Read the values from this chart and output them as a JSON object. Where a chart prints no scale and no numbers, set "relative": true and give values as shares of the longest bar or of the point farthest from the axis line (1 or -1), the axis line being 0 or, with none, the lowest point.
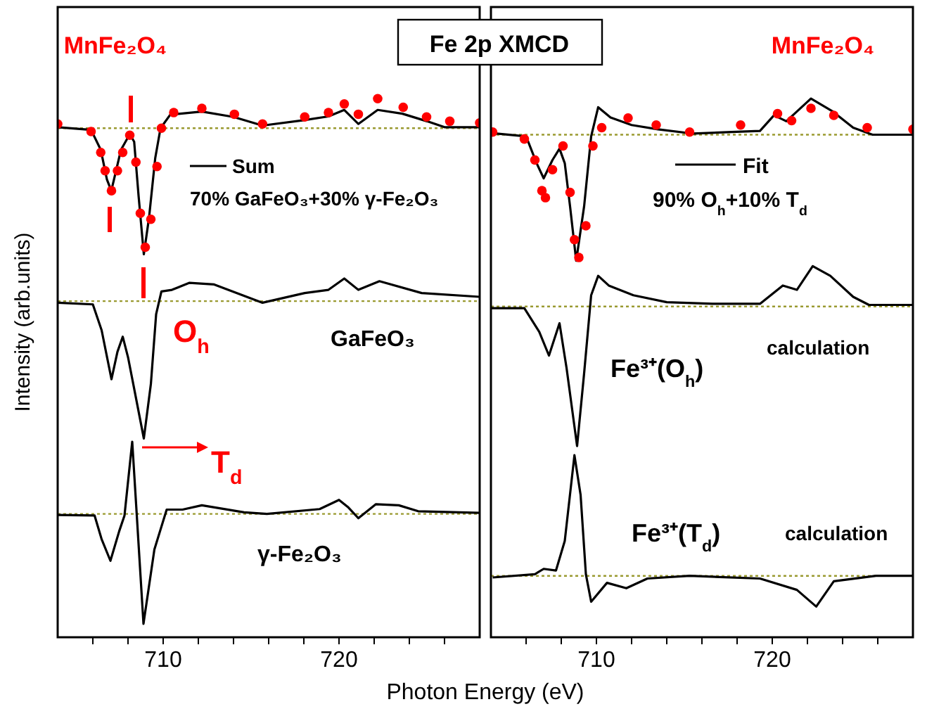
{
  "chart_data": [
    {
      "type": "line",
      "title": "Fe 2p XMCD",
      "xlabel": "Photon Energy (eV)",
      "ylabel": "Intensity (arb.units)",
      "relative": true,
      "xlim": [
        704,
        728
      ],
      "xticks": [
        {
          "value": 706,
          "label": null
        },
        {
          "value": 708,
          "label": null
        },
        {
          "value": 710,
          "label": "710"
        },
        {
          "value": 712,
          "label": null
        },
        {
          "value": 714,
          "label": null
        },
        {
          "value": 716,
          "label": null
        },
        {
          "value": 718,
          "label": null
        },
        {
          "value": 720,
          "label": "720"
        },
        {
          "value": 722,
          "label": null
        },
        {
          "value": 724,
          "label": null
        },
        {
          "value": 726,
          "label": null
        }
      ],
      "ref_lines": [
        {
          "axis": "y",
          "value": 0.945,
          "color": "#9a9a30",
          "line_style": "dotted"
        },
        {
          "axis": "y",
          "value": 0.624,
          "color": "#9a9a30",
          "line_style": "dotted"
        },
        {
          "axis": "y",
          "value": 0.229,
          "color": "#9a9a30",
          "line_style": "dotted"
        }
      ],
      "annotations": [
        "70% GaFeO₃+30% γ-Fe₂O₃",
        "O$_{h}$",
        "T$_{d}$"
      ],
      "series": [
        {
          "name": "MnFe₂O₄",
          "type": "scatter",
          "marker": "circle",
          "color": "#ff0000",
          "x": [
            704.0,
            705.9,
            706.45,
            706.7,
            707.06,
            707.4,
            707.7,
            708.1,
            708.45,
            708.7,
            708.98,
            709.3,
            709.65,
            709.9,
            710.6,
            712.2,
            714.05,
            715.65,
            718.05,
            719.4,
            720.3,
            721.1,
            722.2,
            723.65,
            724.98,
            726.3,
            728
          ],
          "values": [
            0.953,
            0.939,
            0.9,
            0.866,
            0.829,
            0.866,
            0.9,
            0.932,
            0.882,
            0.787,
            0.724,
            0.776,
            0.874,
            0.945,
            0.974,
            0.982,
            0.971,
            0.953,
            0.966,
            0.974,
            0.99,
            0.971,
            1.0,
            0.984,
            0.966,
            0.958,
            0.955
          ]
        },
        {
          "name": "Sum",
          "color": "#000000",
          "x": [
            704.0,
            705.9,
            706.45,
            706.8,
            707.05,
            707.35,
            707.6,
            708.1,
            708.35,
            708.6,
            708.9,
            709.2,
            709.55,
            709.85,
            710.4,
            712.2,
            714.0,
            715.65,
            718.0,
            719.4,
            720.3,
            721.1,
            722.2,
            723.6,
            725.0,
            726.0,
            728
          ],
          "values": [
            0.947,
            0.942,
            0.905,
            0.85,
            0.829,
            0.87,
            0.905,
            0.934,
            0.92,
            0.82,
            0.711,
            0.78,
            0.89,
            0.945,
            0.97,
            0.976,
            0.966,
            0.95,
            0.96,
            0.967,
            0.979,
            0.953,
            0.979,
            0.972,
            0.958,
            0.947,
            0.947
          ]
        },
        {
          "name": "GaFeO₃",
          "color": "#000000",
          "x": [
            704,
            706.0,
            706.5,
            707.06,
            707.4,
            707.7,
            708.0,
            708.3,
            708.9,
            709.3,
            709.6,
            709.9,
            710.5,
            711.5,
            712.9,
            715.65,
            718.05,
            719.4,
            720.3,
            721.1,
            722.3,
            724.7,
            728
          ],
          "values": [
            0.621,
            0.618,
            0.57,
            0.479,
            0.53,
            0.558,
            0.52,
            0.47,
            0.369,
            0.47,
            0.6,
            0.642,
            0.645,
            0.658,
            0.655,
            0.621,
            0.639,
            0.645,
            0.666,
            0.645,
            0.661,
            0.639,
            0.632
          ]
        },
        {
          "name": "γ-Fe₂O₃",
          "color": "#000000",
          "x": [
            704,
            706.1,
            706.5,
            707.0,
            707.5,
            707.8,
            708.24,
            708.5,
            708.88,
            709.5,
            710.2,
            711.1,
            712.2,
            714.6,
            715.9,
            718.9,
            720.0,
            720.5,
            721.1,
            722.1,
            723.4,
            724.5,
            728
          ],
          "values": [
            0.227,
            0.226,
            0.182,
            0.142,
            0.197,
            0.226,
            0.363,
            0.226,
            0.025,
            0.163,
            0.237,
            0.237,
            0.245,
            0.232,
            0.229,
            0.238,
            0.255,
            0.242,
            0.221,
            0.247,
            0.245,
            0.234,
            0.231
          ]
        }
      ]
    },
    {
      "type": "line",
      "relative": true,
      "xlim": [
        704,
        728
      ],
      "xticks": [
        {
          "value": 706,
          "label": null
        },
        {
          "value": 708,
          "label": null
        },
        710,
        {
          "value": 712,
          "label": null
        },
        {
          "value": 714,
          "label": null
        },
        {
          "value": 716,
          "label": null
        },
        {
          "value": 718,
          "label": null
        },
        720,
        {
          "value": 722,
          "label": null
        },
        {
          "value": 724,
          "label": null
        },
        {
          "value": 726,
          "label": null
        }
      ],
      "ref_lines": [
        {
          "axis": "y",
          "value": 0.933,
          "color": "#9a9a30",
          "line_style": "dotted"
        },
        {
          "axis": "y",
          "value": 0.614,
          "color": "#9a9a30",
          "line_style": "dotted"
        },
        {
          "axis": "y",
          "value": 0.114,
          "color": "#9a9a30",
          "line_style": "dotted"
        }
      ],
      "annotations": [
        "90% O$_{h}$+10% T$_{d}$",
        "calculation",
        "calculation"
      ],
      "series": [
        {
          "name": "MnFe₂O₄",
          "type": "scatter",
          "marker": "circle",
          "color": "#ff0000",
          "x": [
            704.1,
            705.9,
            706.5,
            706.9,
            707.1,
            707.5,
            708.1,
            708.5,
            708.75,
            709.0,
            709.4,
            709.8,
            710.3,
            711.8,
            713.4,
            715.3,
            718.2,
            720.3,
            721.1,
            722.2,
            723.5,
            725.4,
            728
          ],
          "values": [
            0.938,
            0.925,
            0.886,
            0.829,
            0.816,
            0.868,
            0.912,
            0.826,
            0.738,
            0.705,
            0.764,
            0.912,
            0.946,
            0.964,
            0.951,
            0.938,
            0.951,
            0.972,
            0.959,
            0.982,
            0.969,
            0.946,
            0.943
          ]
        },
        {
          "name": "Fit",
          "color": "#000000",
          "x": [
            704,
            706.0,
            706.6,
            707.0,
            707.5,
            707.9,
            708.2,
            708.5,
            708.85,
            709.3,
            709.7,
            710.1,
            710.8,
            712.0,
            713.5,
            715.5,
            717.7,
            719.3,
            720.1,
            720.8,
            722.2,
            723.4,
            724.6,
            725.7,
            728
          ],
          "values": [
            0.936,
            0.93,
            0.88,
            0.852,
            0.886,
            0.907,
            0.88,
            0.8,
            0.699,
            0.8,
            0.93,
            0.984,
            0.965,
            0.951,
            0.943,
            0.935,
            0.938,
            0.94,
            0.969,
            0.958,
            1.0,
            0.977,
            0.946,
            0.933,
            0.933
          ]
        },
        {
          "name": "Fe³⁺(O$_{h}$)",
          "color": "#000000",
          "x": [
            704,
            705.9,
            706.75,
            707.3,
            707.9,
            708.3,
            708.9,
            709.3,
            709.7,
            710.1,
            710.7,
            712.1,
            714.0,
            716.6,
            719.3,
            720.6,
            721.4,
            722.3,
            723.3,
            724.6,
            725.5,
            728
          ],
          "values": [
            0.611,
            0.611,
            0.567,
            0.523,
            0.583,
            0.5,
            0.355,
            0.49,
            0.635,
            0.671,
            0.653,
            0.635,
            0.622,
            0.619,
            0.619,
            0.653,
            0.645,
            0.689,
            0.671,
            0.632,
            0.617,
            0.617
          ]
        },
        {
          "name": "Fe³⁺(T$_{d}$)",
          "color": "#000000",
          "x": [
            704.1,
            706.5,
            707.0,
            707.7,
            708.2,
            708.75,
            709.1,
            709.4,
            709.7,
            710.6,
            711.7,
            712.9,
            715.3,
            719.3,
            721.4,
            722.5,
            723.5,
            725.9,
            728
          ],
          "values": [
            0.111,
            0.117,
            0.127,
            0.124,
            0.179,
            0.338,
            0.264,
            0.117,
            0.066,
            0.101,
            0.091,
            0.109,
            0.114,
            0.109,
            0.088,
            0.057,
            0.104,
            0.114,
            0.114
          ]
        }
      ]
    }
  ]
}
